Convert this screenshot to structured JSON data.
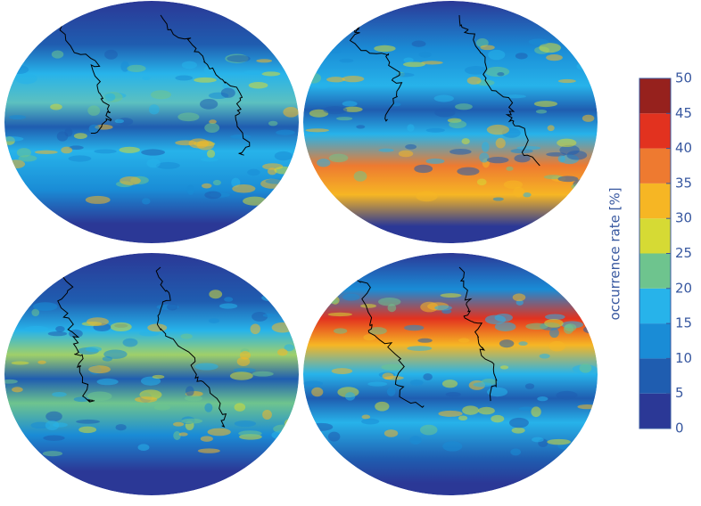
{
  "colorbar": {
    "label": "occurrence rate [%]",
    "lim": [
      0,
      50
    ],
    "ticks": [
      0,
      5,
      10,
      15,
      20,
      25,
      30,
      35,
      40,
      45,
      50
    ],
    "colors": [
      "#2b3896",
      "#1f5db0",
      "#1a8cd6",
      "#27b3ea",
      "#6ec48e",
      "#d6da34",
      "#f6b624",
      "#ee7a30",
      "#e2321f",
      "#96211d"
    ]
  }
}
